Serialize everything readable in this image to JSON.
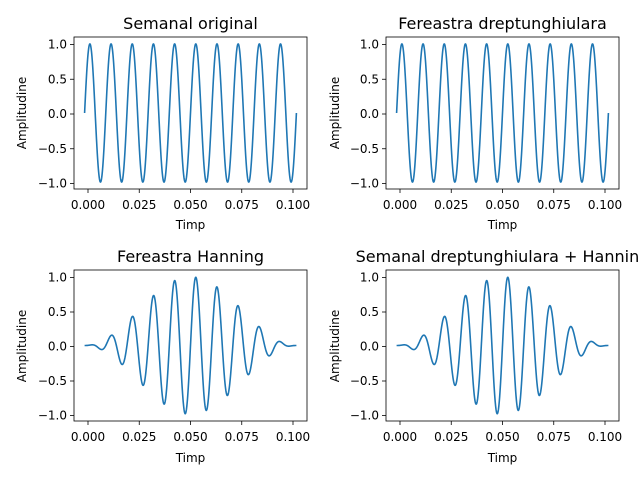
{
  "chart_data": [
    {
      "type": "line",
      "title": "Semanal original",
      "xlabel": "Timp",
      "ylabel": "Amplitudine",
      "xlim": [
        -0.005,
        0.105
      ],
      "ylim": [
        -1.1,
        1.1
      ],
      "xticks": [
        0.0,
        0.025,
        0.05,
        0.075,
        0.1
      ],
      "xtick_labels": [
        "0.000",
        "0.025",
        "0.050",
        "0.075",
        "0.100"
      ],
      "yticks": [
        -1.0,
        -0.5,
        0.0,
        0.5,
        1.0
      ],
      "ytick_labels": [
        "−1.0",
        "−0.5",
        "0.0",
        "0.5",
        "1.0"
      ],
      "grid": false,
      "series": [
        {
          "frequency_hz": 100,
          "duration_s": 0.1,
          "window": "none",
          "color": "#1f77b4"
        }
      ]
    },
    {
      "type": "line",
      "title": "Fereastra dreptunghiulara",
      "xlabel": "Timp",
      "ylabel": "Amplitudine",
      "xlim": [
        -0.005,
        0.105
      ],
      "ylim": [
        -1.1,
        1.1
      ],
      "xticks": [
        0.0,
        0.025,
        0.05,
        0.075,
        0.1
      ],
      "xtick_labels": [
        "0.000",
        "0.025",
        "0.050",
        "0.075",
        "0.100"
      ],
      "yticks": [
        -1.0,
        -0.5,
        0.0,
        0.5,
        1.0
      ],
      "ytick_labels": [
        "−1.0",
        "−0.5",
        "0.0",
        "0.5",
        "1.0"
      ],
      "grid": false,
      "series": [
        {
          "frequency_hz": 100,
          "duration_s": 0.1,
          "window": "rectangular",
          "color": "#1f77b4"
        }
      ]
    },
    {
      "type": "line",
      "title": "Fereastra Hanning",
      "xlabel": "Timp",
      "ylabel": "Amplitudine",
      "xlim": [
        -0.005,
        0.105
      ],
      "ylim": [
        -1.1,
        1.1
      ],
      "xticks": [
        0.0,
        0.025,
        0.05,
        0.075,
        0.1
      ],
      "xtick_labels": [
        "0.000",
        "0.025",
        "0.050",
        "0.075",
        "0.100"
      ],
      "yticks": [
        -1.0,
        -0.5,
        0.0,
        0.5,
        1.0
      ],
      "ytick_labels": [
        "−1.0",
        "−0.5",
        "0.0",
        "0.5",
        "1.0"
      ],
      "grid": false,
      "series": [
        {
          "frequency_hz": 100,
          "duration_s": 0.1,
          "window": "hanning",
          "color": "#1f77b4"
        }
      ]
    },
    {
      "type": "line",
      "title": "Semanal dreptunghiulara + Hanning",
      "xlabel": "Timp",
      "ylabel": "Amplitudine",
      "xlim": [
        -0.005,
        0.105
      ],
      "ylim": [
        -1.1,
        1.1
      ],
      "xticks": [
        0.0,
        0.025,
        0.05,
        0.075,
        0.1
      ],
      "xtick_labels": [
        "0.000",
        "0.025",
        "0.050",
        "0.075",
        "0.100"
      ],
      "yticks": [
        -1.0,
        -0.5,
        0.0,
        0.5,
        1.0
      ],
      "ytick_labels": [
        "−1.0",
        "−0.5",
        "0.0",
        "0.5",
        "1.0"
      ],
      "grid": false,
      "series": [
        {
          "frequency_hz": 100,
          "duration_s": 0.1,
          "window": "hanning",
          "color": "#1f77b4"
        }
      ]
    }
  ]
}
